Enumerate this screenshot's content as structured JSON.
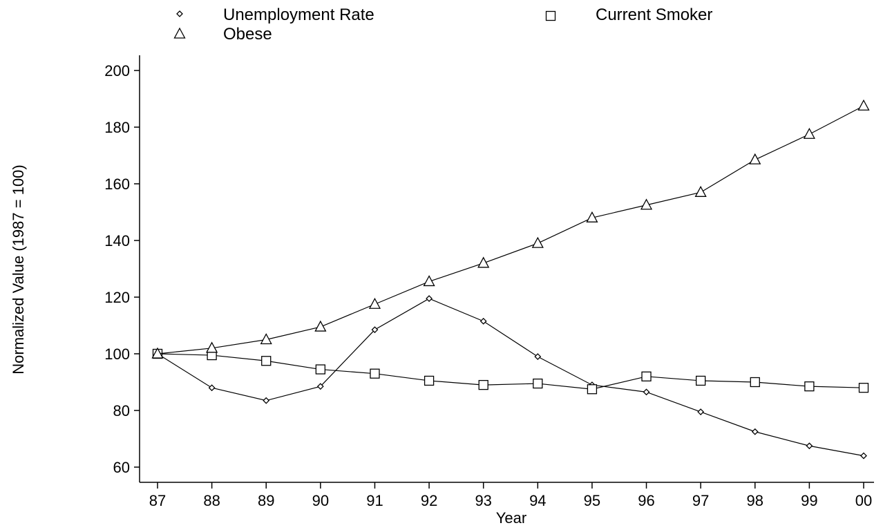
{
  "chart_data": {
    "type": "line",
    "xlabel": "Year",
    "ylabel": "Normalized Value (1987 = 100)",
    "categories": [
      "87",
      "88",
      "89",
      "90",
      "91",
      "92",
      "93",
      "94",
      "95",
      "96",
      "97",
      "98",
      "99",
      "00"
    ],
    "ylim": [
      55,
      205
    ],
    "yticks": [
      60,
      80,
      100,
      120,
      140,
      160,
      180,
      200
    ],
    "grid": false,
    "legend_position": "top",
    "series": [
      {
        "name": "Unemployment Rate",
        "marker": "diamond",
        "values": [
          100,
          88,
          83.5,
          88.5,
          108.5,
          119.5,
          111.5,
          99,
          89,
          86.5,
          79.5,
          72.5,
          67.5,
          64
        ]
      },
      {
        "name": "Current Smoker",
        "marker": "square",
        "values": [
          100,
          99.5,
          97.5,
          94.5,
          93,
          90.5,
          89,
          89.5,
          87.5,
          92,
          90.5,
          90,
          88.5,
          88
        ]
      },
      {
        "name": "Obese",
        "marker": "triangle",
        "values": [
          100,
          102,
          105,
          109.5,
          117.5,
          125.5,
          132,
          139,
          148,
          152.5,
          157,
          168.5,
          177.5,
          187.5
        ]
      }
    ]
  }
}
